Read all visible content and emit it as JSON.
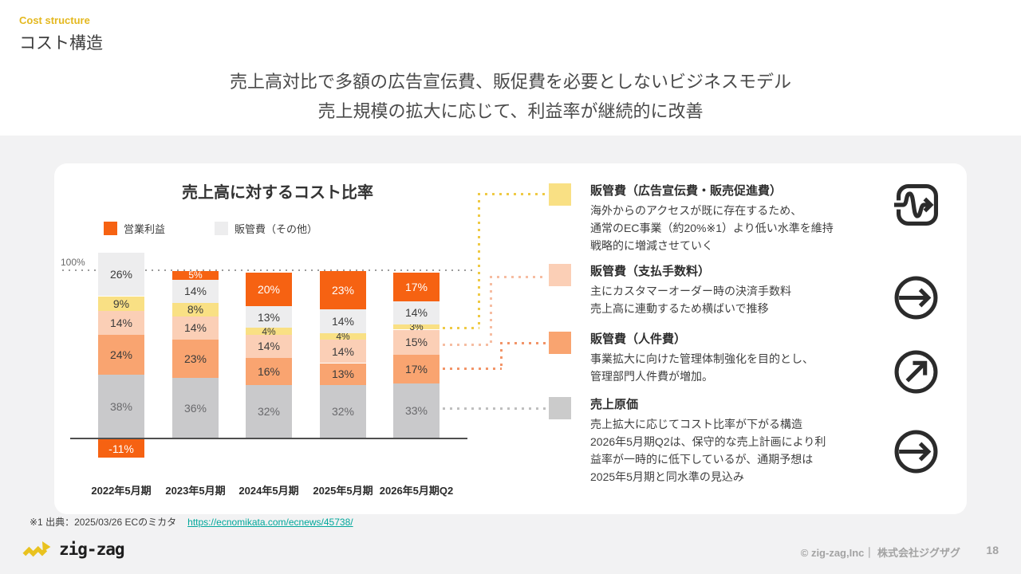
{
  "colors": {
    "accent_gold": "#e4b81f",
    "orange": "#f66212",
    "salmon": "#f9a470",
    "pink": "#fbcfb6",
    "yellow": "#f9e084",
    "gray_light": "#ededee",
    "gray_mid": "#c9c9cb",
    "chip_gray": "#cbcbcb",
    "link_teal": "#00a79b"
  },
  "header": {
    "eyebrow": "Cost structure",
    "title": "コスト構造",
    "subtitle_line1": "売上高対比で多額の広告宣伝費、販促費を必要としないビジネスモデル",
    "subtitle_line2": "売上規模の拡大に応じて、利益率が継続的に改善"
  },
  "chart_data": {
    "type": "bar",
    "stacked": true,
    "title": "売上高に対するコスト比率",
    "categories": [
      "2022年5月期",
      "2023年5月期",
      "2024年5月期",
      "2025年5月期",
      "2026年5月期Q2"
    ],
    "series": [
      {
        "name": "売上原価",
        "color": "#c9c9cb",
        "values": [
          38,
          36,
          32,
          32,
          33
        ]
      },
      {
        "name": "販管費（人件費）",
        "color": "#f9a470",
        "values": [
          24,
          23,
          16,
          13,
          17
        ]
      },
      {
        "name": "販管費（支払手数料）",
        "color": "#fbcfb6",
        "values": [
          14,
          14,
          14,
          14,
          15
        ]
      },
      {
        "name": "販管費（広告宣伝費・販売促進費）",
        "color": "#f9e084",
        "values": [
          9,
          8,
          4,
          4,
          3
        ]
      },
      {
        "name": "販管費（その他）",
        "color": "#ededee",
        "values": [
          26,
          14,
          13,
          14,
          14
        ]
      },
      {
        "name": "営業利益",
        "color": "#f66212",
        "values": [
          -11,
          5,
          20,
          23,
          17
        ]
      }
    ],
    "legend": [
      {
        "label": "営業利益",
        "color": "#f66212"
      },
      {
        "label": "販管費（その他）",
        "color": "#ededee"
      }
    ],
    "legend_position": "top-left",
    "reference_line_label": "100%",
    "ylim": [
      -11,
      111
    ],
    "grid": false,
    "value_suffix": "%"
  },
  "notes": [
    {
      "color": "#f9e084",
      "icon": "wavy-arrow-square",
      "title": "販管費（広告宣伝費・販売促進費）",
      "body_lines": [
        "海外からのアクセスが既に存在するため、",
        "通常のEC事業（約20%※1）より低い水準を維持",
        "戦略的に増減させていく"
      ]
    },
    {
      "color": "#fbcfb6",
      "icon": "arrow-right-circle",
      "title": "販管費（支払手数料）",
      "body_lines": [
        "主にカスタマーオーダー時の決済手数料",
        "売上高に連動するため横ばいで推移"
      ]
    },
    {
      "color": "#f9a470",
      "icon": "arrow-up-right-circle",
      "title": "販管費（人件費）",
      "body_lines": [
        "事業拡大に向けた管理体制強化を目的とし、",
        "管理部門人件費が増加。"
      ]
    },
    {
      "color": "#cbcbcb",
      "icon": "arrow-right-circle",
      "title": "売上原価",
      "body_lines": [
        "売上拡大に応じてコスト比率が下がる構造",
        "2026年5月期Q2は、保守的な売上計画により利",
        "益率が一時的に低下しているが、通期予想は",
        "2025年5月期と同水準の見込み"
      ]
    }
  ],
  "footnote": {
    "label": "※1 出典：2025/03/26 ECのミカタ",
    "link": "https://ecnomikata.com/ecnews/45738/"
  },
  "footer": {
    "logo_text": "zig-zag",
    "copyright": "© zig-zag,Inc｜ 株式会社ジグザグ",
    "page_number": "18"
  }
}
